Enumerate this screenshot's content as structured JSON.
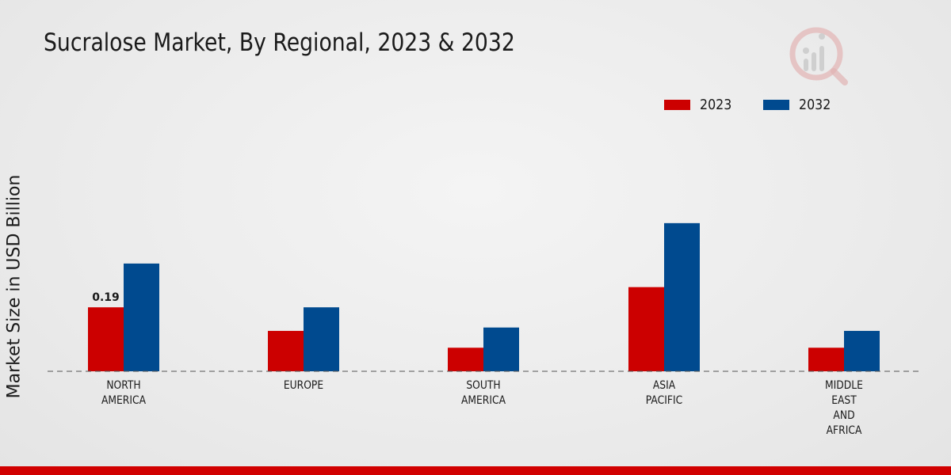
{
  "chart_data": {
    "type": "bar",
    "title": "Sucralose Market, By Regional, 2023 & 2032",
    "xlabel": "",
    "ylabel": "Market Size in USD Billion",
    "categories": [
      "NORTH\nAMERICA",
      "EUROPE",
      "SOUTH\nAMERICA",
      "ASIA\nPACIFIC",
      "MIDDLE\nEAST\nAND\nAFRICA"
    ],
    "series": [
      {
        "name": "2023",
        "color": "#cc0000",
        "values": [
          0.19,
          0.12,
          0.07,
          0.25,
          0.07
        ]
      },
      {
        "name": "2032",
        "color": "#004a8f",
        "values": [
          0.32,
          0.19,
          0.13,
          0.44,
          0.12
        ]
      }
    ],
    "data_labels": [
      {
        "series": 0,
        "index": 0,
        "text": "0.19"
      }
    ],
    "ylim": [
      0,
      0.75
    ],
    "grid": false,
    "legend_position": "top-right"
  },
  "brand": {
    "accent": "#d10000"
  }
}
